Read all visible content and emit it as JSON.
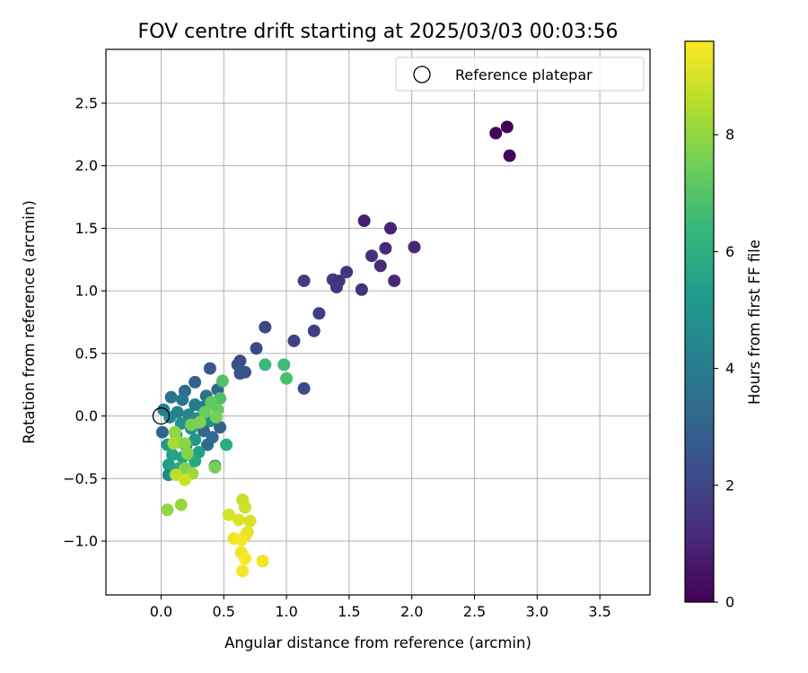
{
  "chart_data": {
    "type": "scatter",
    "title": "FOV centre drift starting at 2025/03/03 00:03:56",
    "xlabel": "Angular distance from reference (arcmin)",
    "ylabel": "Rotation from reference (arcmin)",
    "xlim": [
      -0.44,
      3.9
    ],
    "ylim": [
      -1.43,
      2.93
    ],
    "xticks": [
      "0.0",
      "0.5",
      "1.0",
      "1.5",
      "2.0",
      "2.5",
      "3.0",
      "3.5"
    ],
    "yticks": [
      "−1.0",
      "−0.5",
      "0.0",
      "0.5",
      "1.0",
      "1.5",
      "2.0",
      "2.5"
    ],
    "grid": true,
    "legend": {
      "placement": "top-right",
      "entries": [
        "Reference platepar"
      ]
    },
    "reference_point": {
      "x": 0.0,
      "y": 0.0,
      "marker": "open-circle"
    },
    "colorbar": {
      "label": "Hours from first FF file",
      "range": [
        0,
        9.6
      ],
      "ticks": [
        "0",
        "2",
        "4",
        "6",
        "8"
      ],
      "colormap": "viridis"
    },
    "series": [
      {
        "points": [
          {
            "x": 2.76,
            "y": 2.31,
            "h": 0.0
          },
          {
            "x": 2.67,
            "y": 2.26,
            "h": 0.1
          },
          {
            "x": 2.78,
            "y": 2.08,
            "h": 0.2
          },
          {
            "x": 1.62,
            "y": 1.56,
            "h": 0.8
          },
          {
            "x": 1.83,
            "y": 1.5,
            "h": 0.9
          },
          {
            "x": 2.02,
            "y": 1.35,
            "h": 1.0
          },
          {
            "x": 1.79,
            "y": 1.34,
            "h": 1.1
          },
          {
            "x": 1.68,
            "y": 1.28,
            "h": 1.3
          },
          {
            "x": 1.75,
            "y": 1.2,
            "h": 1.2
          },
          {
            "x": 1.48,
            "y": 1.15,
            "h": 1.5
          },
          {
            "x": 1.37,
            "y": 1.09,
            "h": 1.6
          },
          {
            "x": 1.42,
            "y": 1.08,
            "h": 1.5
          },
          {
            "x": 1.86,
            "y": 1.08,
            "h": 1.1
          },
          {
            "x": 1.14,
            "y": 1.08,
            "h": 1.7
          },
          {
            "x": 1.4,
            "y": 1.03,
            "h": 1.6
          },
          {
            "x": 1.6,
            "y": 1.01,
            "h": 1.4
          },
          {
            "x": 1.26,
            "y": 0.82,
            "h": 1.8
          },
          {
            "x": 0.83,
            "y": 0.71,
            "h": 2.0
          },
          {
            "x": 1.22,
            "y": 0.68,
            "h": 1.8
          },
          {
            "x": 1.06,
            "y": 0.6,
            "h": 1.9
          },
          {
            "x": 0.76,
            "y": 0.54,
            "h": 2.1
          },
          {
            "x": 0.63,
            "y": 0.44,
            "h": 2.2
          },
          {
            "x": 0.61,
            "y": 0.41,
            "h": 2.3
          },
          {
            "x": 0.39,
            "y": 0.38,
            "h": 2.6
          },
          {
            "x": 0.67,
            "y": 0.35,
            "h": 2.4
          },
          {
            "x": 0.63,
            "y": 0.34,
            "h": 2.5
          },
          {
            "x": 0.27,
            "y": 0.27,
            "h": 3.0
          },
          {
            "x": 1.14,
            "y": 0.22,
            "h": 2.2
          },
          {
            "x": 0.45,
            "y": 0.21,
            "h": 3.2
          },
          {
            "x": 0.19,
            "y": 0.2,
            "h": 3.4
          },
          {
            "x": 0.36,
            "y": 0.16,
            "h": 3.5
          },
          {
            "x": 0.08,
            "y": 0.15,
            "h": 3.6
          },
          {
            "x": 0.17,
            "y": 0.13,
            "h": 3.8
          },
          {
            "x": 0.42,
            "y": 0.1,
            "h": 4.0
          },
          {
            "x": 0.27,
            "y": 0.09,
            "h": 3.9
          },
          {
            "x": 0.33,
            "y": 0.07,
            "h": 4.1
          },
          {
            "x": 0.02,
            "y": 0.05,
            "h": 4.2
          },
          {
            "x": 0.13,
            "y": 0.03,
            "h": 4.3
          },
          {
            "x": 0.22,
            "y": 0.01,
            "h": 4.4
          },
          {
            "x": 0.07,
            "y": -0.01,
            "h": 4.5
          },
          {
            "x": 0.29,
            "y": -0.02,
            "h": 4.6
          },
          {
            "x": 0.39,
            "y": -0.04,
            "h": 4.7
          },
          {
            "x": 0.47,
            "y": -0.09,
            "h": 3.0
          },
          {
            "x": 0.16,
            "y": -0.06,
            "h": 4.8
          },
          {
            "x": 0.24,
            "y": -0.1,
            "h": 4.9
          },
          {
            "x": 0.34,
            "y": -0.12,
            "h": 3.2
          },
          {
            "x": 0.01,
            "y": -0.13,
            "h": 3.1
          },
          {
            "x": 0.12,
            "y": -0.15,
            "h": 5.0
          },
          {
            "x": 0.41,
            "y": -0.17,
            "h": 3.3
          },
          {
            "x": 0.27,
            "y": -0.19,
            "h": 5.1
          },
          {
            "x": 0.05,
            "y": -0.23,
            "h": 5.2
          },
          {
            "x": 0.37,
            "y": -0.23,
            "h": 3.4
          },
          {
            "x": 0.52,
            "y": -0.23,
            "h": 6.0
          },
          {
            "x": 0.2,
            "y": -0.24,
            "h": 5.3
          },
          {
            "x": 0.3,
            "y": -0.29,
            "h": 5.4
          },
          {
            "x": 0.09,
            "y": -0.31,
            "h": 5.5
          },
          {
            "x": 0.17,
            "y": -0.33,
            "h": 5.6
          },
          {
            "x": 0.27,
            "y": -0.36,
            "h": 5.7
          },
          {
            "x": 0.06,
            "y": -0.39,
            "h": 5.4
          },
          {
            "x": 0.43,
            "y": -0.4,
            "h": 3.6
          },
          {
            "x": 0.14,
            "y": -0.42,
            "h": 5.8
          },
          {
            "x": 0.23,
            "y": -0.45,
            "h": 5.9
          },
          {
            "x": 0.06,
            "y": -0.47,
            "h": 4.5
          },
          {
            "x": 0.11,
            "y": -0.46,
            "h": 5.6
          },
          {
            "x": 0.47,
            "y": 0.14,
            "h": 6.8
          },
          {
            "x": 0.49,
            "y": 0.28,
            "h": 6.9
          },
          {
            "x": 0.83,
            "y": 0.41,
            "h": 6.5
          },
          {
            "x": 0.98,
            "y": 0.41,
            "h": 6.6
          },
          {
            "x": 1.0,
            "y": 0.3,
            "h": 6.8
          },
          {
            "x": 0.4,
            "y": 0.11,
            "h": 7.2
          },
          {
            "x": 0.45,
            "y": 0.05,
            "h": 7.3
          },
          {
            "x": 0.35,
            "y": 0.03,
            "h": 7.4
          },
          {
            "x": 0.44,
            "y": -0.01,
            "h": 7.5
          },
          {
            "x": 0.24,
            "y": -0.07,
            "h": 7.6
          },
          {
            "x": 0.31,
            "y": -0.05,
            "h": 7.7
          },
          {
            "x": 0.11,
            "y": -0.13,
            "h": 8.0
          },
          {
            "x": 0.14,
            "y": -0.21,
            "h": 8.1
          },
          {
            "x": 0.1,
            "y": -0.22,
            "h": 8.3
          },
          {
            "x": 0.19,
            "y": -0.22,
            "h": 7.9
          },
          {
            "x": 0.21,
            "y": -0.3,
            "h": 7.8
          },
          {
            "x": 0.19,
            "y": -0.42,
            "h": 7.7
          },
          {
            "x": 0.25,
            "y": -0.46,
            "h": 8.2
          },
          {
            "x": 0.43,
            "y": -0.41,
            "h": 7.6
          },
          {
            "x": 0.12,
            "y": -0.47,
            "h": 8.6
          },
          {
            "x": 0.19,
            "y": -0.51,
            "h": 8.9
          },
          {
            "x": 0.05,
            "y": -0.75,
            "h": 8.0
          },
          {
            "x": 0.16,
            "y": -0.71,
            "h": 8.1
          },
          {
            "x": 0.65,
            "y": -0.67,
            "h": 8.8
          },
          {
            "x": 0.67,
            "y": -0.73,
            "h": 8.9
          },
          {
            "x": 0.54,
            "y": -0.79,
            "h": 9.0
          },
          {
            "x": 0.62,
            "y": -0.83,
            "h": 9.1
          },
          {
            "x": 0.71,
            "y": -0.84,
            "h": 9.0
          },
          {
            "x": 0.69,
            "y": -0.93,
            "h": 9.2
          },
          {
            "x": 0.67,
            "y": -0.96,
            "h": 9.3
          },
          {
            "x": 0.58,
            "y": -0.98,
            "h": 9.4
          },
          {
            "x": 0.64,
            "y": -0.99,
            "h": 9.5
          },
          {
            "x": 0.64,
            "y": -1.09,
            "h": 9.3
          },
          {
            "x": 0.67,
            "y": -1.14,
            "h": 9.6
          },
          {
            "x": 0.81,
            "y": -1.16,
            "h": 9.4
          },
          {
            "x": 0.65,
            "y": -1.24,
            "h": 9.5
          }
        ]
      }
    ]
  }
}
